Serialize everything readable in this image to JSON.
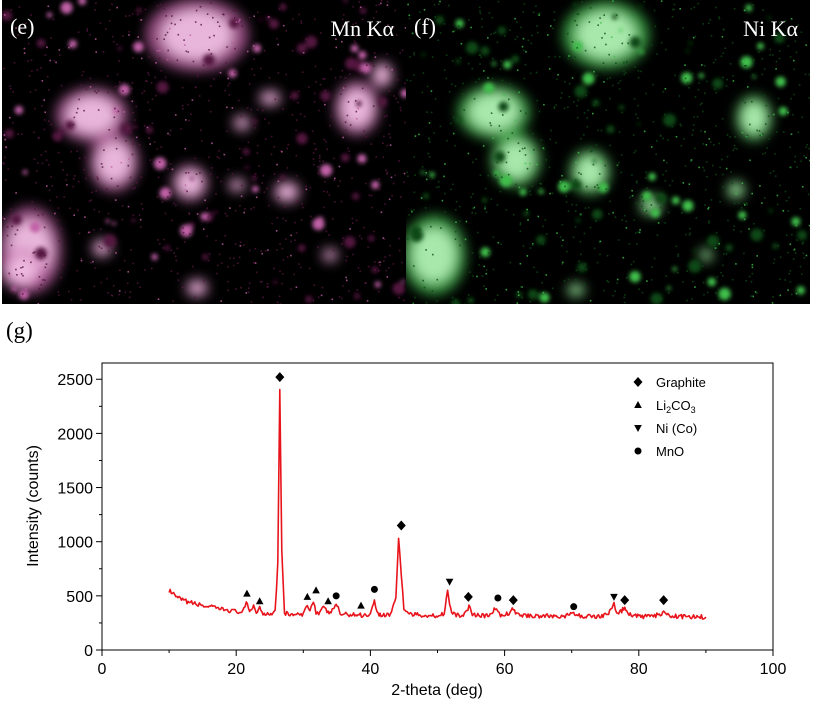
{
  "panel_e": {
    "letter": "(e)",
    "element": "Mn Kα",
    "colors": {
      "bright": "#f2c2e4",
      "mid": "#c060a6",
      "dim": "#55153f"
    }
  },
  "panel_f": {
    "letter": "(f)",
    "element": "Ni Kα",
    "colors": {
      "bright": "#b6f2b8",
      "mid": "#3fbf4c",
      "dim": "#0f4a16"
    }
  },
  "panel_g": {
    "letter": "(g)"
  },
  "chart_data": {
    "type": "line",
    "xlabel": "2-theta (deg)",
    "ylabel": "Intensity (counts)",
    "xlim": [
      0,
      100
    ],
    "ylim": [
      0,
      2650
    ],
    "x_ticks": [
      0,
      20,
      40,
      60,
      80,
      100
    ],
    "y_ticks": [
      0,
      500,
      1000,
      1500,
      2000,
      2500
    ],
    "grid": false,
    "legend_position": "top-right",
    "series": [
      {
        "color": "#e8141b",
        "x": [
          10,
          11,
          12,
          13,
          14,
          15,
          16,
          17,
          18,
          19,
          20,
          21,
          21.5,
          22,
          22.6,
          23,
          23.5,
          24,
          25,
          25.8,
          26.2,
          26.5,
          26.8,
          27.2,
          28,
          29,
          30,
          30.6,
          31,
          31.5,
          31.9,
          32.3,
          33,
          33.7,
          34.3,
          34.9,
          35.5,
          36,
          37,
          38,
          39,
          40,
          40.6,
          41,
          41.6,
          42,
          43,
          43.8,
          44.2,
          44.6,
          45,
          45.6,
          46.5,
          48,
          50,
          51,
          51.5,
          51.8,
          52.1,
          52.6,
          53.5,
          54.2,
          54.7,
          55.2,
          56,
          57,
          58,
          58.6,
          59,
          59.4,
          60,
          60.8,
          61.3,
          61.8,
          63,
          65,
          67,
          69,
          70,
          70.3,
          70.6,
          72,
          74,
          75.5,
          76,
          76.3,
          76.7,
          77.3,
          77.9,
          78.4,
          80,
          82,
          83.4,
          83.7,
          84,
          86,
          88,
          90
        ],
        "y": [
          550,
          490,
          460,
          440,
          425,
          410,
          400,
          385,
          375,
          365,
          355,
          350,
          430,
          360,
          410,
          345,
          390,
          340,
          335,
          360,
          800,
          2420,
          900,
          340,
          330,
          325,
          322,
          430,
          360,
          460,
          350,
          335,
          390,
          345,
          360,
          430,
          335,
          330,
          328,
          325,
          322,
          330,
          470,
          340,
          325,
          322,
          330,
          480,
          1040,
          700,
          380,
          340,
          325,
          320,
          318,
          340,
          550,
          420,
          345,
          322,
          320,
          340,
          400,
          335,
          322,
          318,
          320,
          390,
          340,
          320,
          318,
          350,
          380,
          330,
          318,
          315,
          314,
          312,
          330,
          350,
          318,
          312,
          310,
          335,
          390,
          430,
          340,
          355,
          390,
          330,
          310,
          309,
          335,
          350,
          320,
          308,
          306,
          305
        ]
      }
    ],
    "annotations": [
      {
        "marker": "diamond",
        "x": 26.5,
        "y": 2520
      },
      {
        "marker": "triangle-up",
        "x": 21.6,
        "y": 520
      },
      {
        "marker": "triangle-up",
        "x": 23.5,
        "y": 450
      },
      {
        "marker": "triangle-up",
        "x": 30.6,
        "y": 490
      },
      {
        "marker": "triangle-up",
        "x": 31.9,
        "y": 550
      },
      {
        "marker": "triangle-up",
        "x": 33.7,
        "y": 450
      },
      {
        "marker": "circle",
        "x": 34.9,
        "y": 500
      },
      {
        "marker": "triangle-up",
        "x": 38.6,
        "y": 410
      },
      {
        "marker": "circle",
        "x": 40.6,
        "y": 560
      },
      {
        "marker": "diamond",
        "x": 44.6,
        "y": 1150
      },
      {
        "marker": "triangle-down",
        "x": 51.8,
        "y": 630
      },
      {
        "marker": "diamond",
        "x": 54.6,
        "y": 490
      },
      {
        "marker": "circle",
        "x": 59.0,
        "y": 480
      },
      {
        "marker": "diamond",
        "x": 61.3,
        "y": 460
      },
      {
        "marker": "circle",
        "x": 70.3,
        "y": 400
      },
      {
        "marker": "triangle-down",
        "x": 76.3,
        "y": 490
      },
      {
        "marker": "diamond",
        "x": 77.9,
        "y": 460
      },
      {
        "marker": "diamond",
        "x": 83.7,
        "y": 460
      }
    ],
    "legend": [
      {
        "marker": "diamond",
        "label": "Graphite"
      },
      {
        "marker": "triangle-up",
        "label": "Li",
        "sub": "2",
        "label2": "CO",
        "sub2": "3"
      },
      {
        "marker": "triangle-down",
        "label": "Ni (Co)"
      },
      {
        "marker": "circle",
        "label": "MnO"
      }
    ]
  }
}
